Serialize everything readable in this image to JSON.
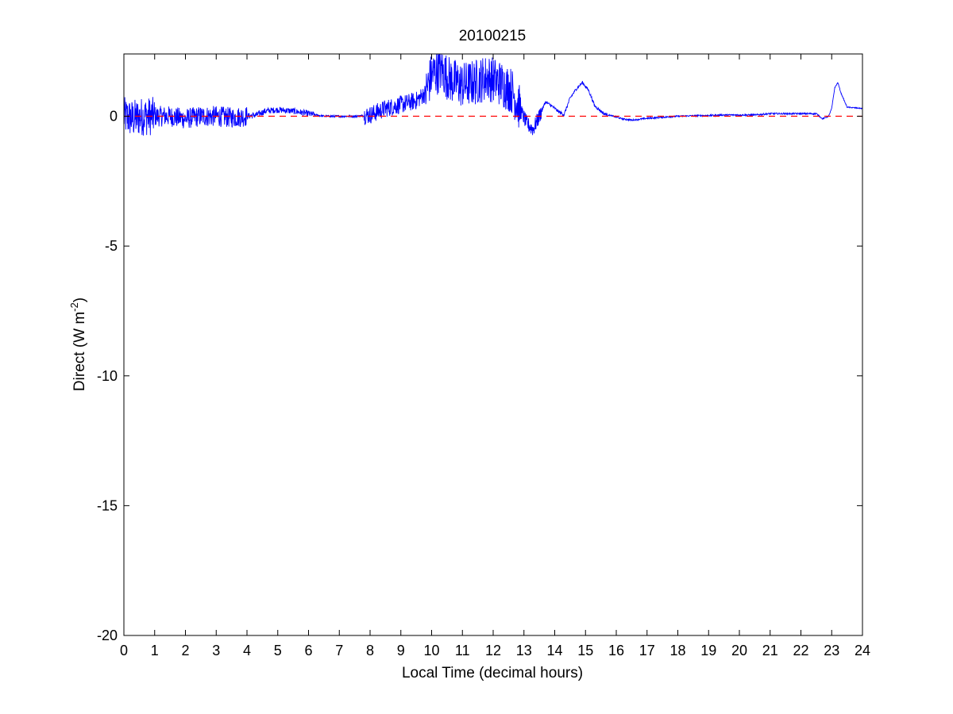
{
  "chart_data": {
    "type": "line",
    "title": "20100215",
    "xlabel": "Local Time (decimal hours)",
    "ylabel": {
      "main": "Direct (W m",
      "sup": "-2",
      "close": ")"
    },
    "xlim": [
      0,
      24
    ],
    "ylim": [
      -20,
      2.4
    ],
    "xticks": [
      0,
      1,
      2,
      3,
      4,
      5,
      6,
      7,
      8,
      9,
      10,
      11,
      12,
      13,
      14,
      15,
      16,
      17,
      18,
      19,
      20,
      21,
      22,
      23,
      24
    ],
    "yticks": [
      0,
      -5,
      -10,
      -15,
      -20
    ],
    "grid": false,
    "colors": {
      "series": "#0000ff",
      "reference": "#ff0000",
      "axes": "#000000"
    },
    "reference_line": {
      "y": 0,
      "style": "dashed"
    },
    "series": [
      {
        "style": "noisy",
        "x": [
          0,
          0.3,
          0.6,
          1,
          1.5,
          2,
          2.5,
          3,
          3.5,
          4,
          4.3,
          4.6,
          5,
          5.5,
          6,
          6.5,
          7,
          7.5,
          8,
          8.5,
          9,
          9.5,
          9.8,
          10,
          10.3,
          10.6,
          11,
          11.4,
          11.8,
          12.2,
          12.6,
          12.9,
          13.1,
          13.3,
          13.5,
          13.7,
          13.9,
          14.1,
          14.3,
          14.5,
          14.7,
          14.9,
          15.1,
          15.3,
          15.6,
          15.9,
          16.2,
          16.5,
          17,
          17.5,
          18,
          18.5,
          19,
          19.5,
          20,
          20.5,
          21,
          21.5,
          22,
          22.5,
          22.7,
          22.9,
          23,
          23.1,
          23.2,
          23.3,
          23.5,
          24
        ],
        "y": [
          0,
          -0.1,
          0,
          0,
          0,
          -0.1,
          0,
          0,
          -0.05,
          0,
          0.05,
          0.2,
          0.25,
          0.2,
          0.1,
          0,
          0,
          0,
          0.05,
          0.3,
          0.45,
          0.6,
          0.9,
          1.6,
          1.8,
          1.4,
          1.2,
          1.3,
          1.5,
          1.3,
          1.0,
          0.2,
          -0.3,
          -0.5,
          0,
          0.55,
          0.4,
          0.2,
          0.05,
          0.7,
          1.05,
          1.3,
          1.0,
          0.4,
          0.1,
          0,
          -0.1,
          -0.15,
          -0.08,
          -0.04,
          0,
          0.02,
          0.03,
          0.05,
          0.05,
          0.05,
          0.1,
          0.1,
          0.1,
          0.1,
          -0.1,
          0,
          0.3,
          1.1,
          1.3,
          0.9,
          0.35,
          0.3
        ]
      }
    ]
  }
}
